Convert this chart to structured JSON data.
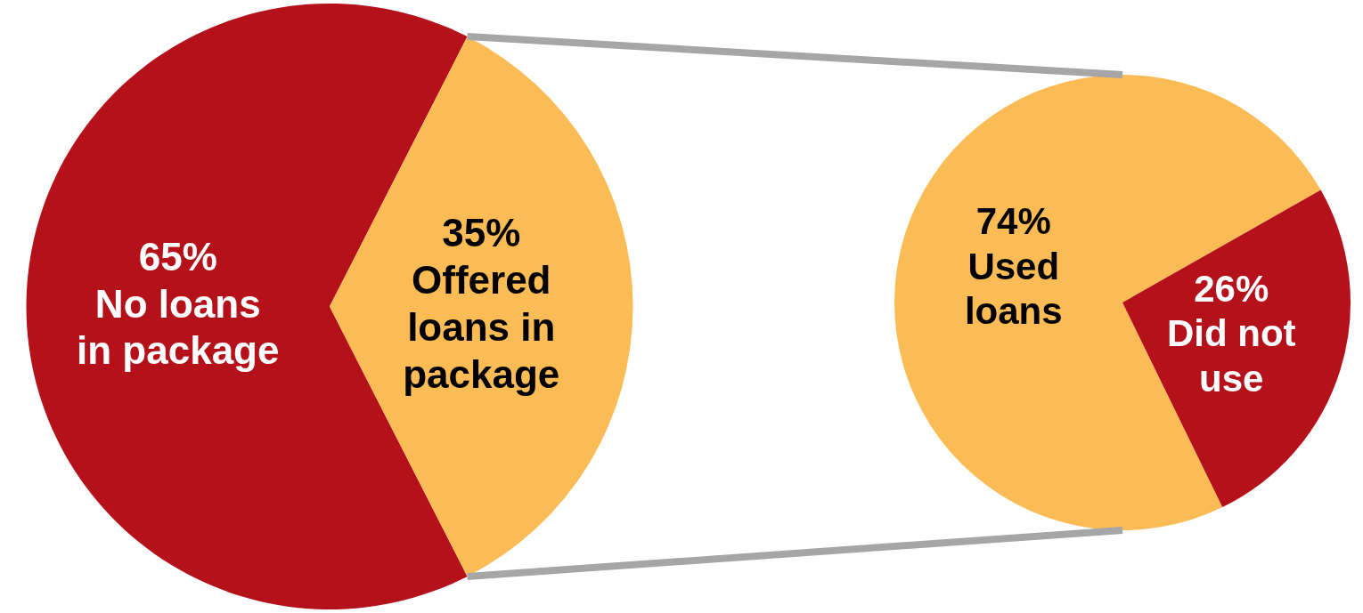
{
  "chart_data": [
    {
      "type": "pie",
      "categories": [
        "No loans in package",
        "Offered loans in package"
      ],
      "values": [
        65,
        35
      ],
      "colors": [
        "#b5111b",
        "#fbbc55"
      ],
      "value_labels": [
        "65%",
        "35%"
      ]
    },
    {
      "type": "pie",
      "categories": [
        "Used loans",
        "Did not use"
      ],
      "values": [
        74,
        26
      ],
      "colors": [
        "#fbbc55",
        "#b5111b"
      ],
      "value_labels": [
        "74%",
        "26%"
      ]
    }
  ]
}
